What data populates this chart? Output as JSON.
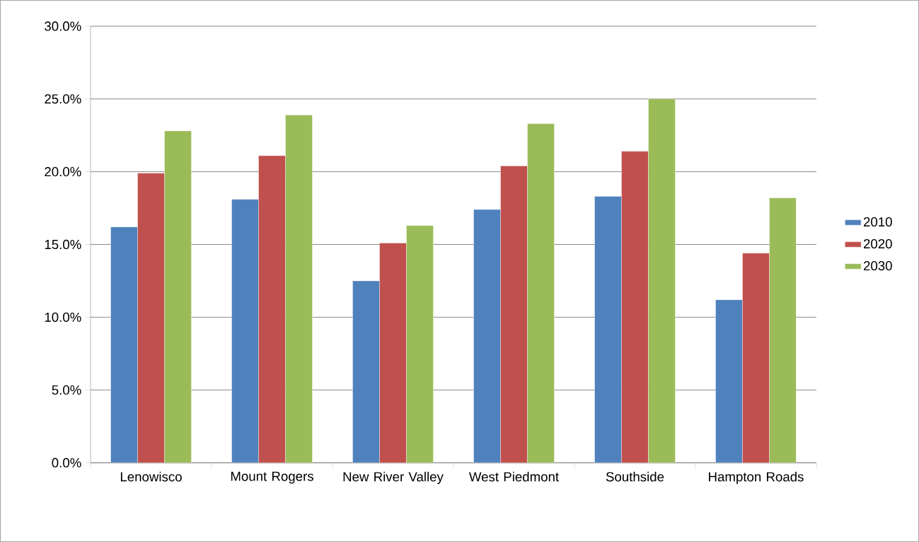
{
  "chart_data": {
    "type": "bar",
    "categories": [
      "Lenowisco",
      "Mount Rogers",
      "New River Valley",
      "West Piedmont",
      "Southside",
      "Hampton Roads"
    ],
    "series": [
      {
        "name": "2010",
        "color": "#4f81bd",
        "values": [
          16.2,
          18.1,
          12.5,
          17.4,
          18.3,
          11.2
        ]
      },
      {
        "name": "2020",
        "color": "#c0504d",
        "values": [
          19.9,
          21.1,
          15.1,
          20.4,
          21.4,
          14.4
        ]
      },
      {
        "name": "2030",
        "color": "#9bbb59",
        "values": [
          22.8,
          23.9,
          16.3,
          23.3,
          25.0,
          18.2
        ]
      }
    ],
    "ylim": [
      0,
      30
    ],
    "yticks": [
      {
        "value": 0,
        "label": "0.0%"
      },
      {
        "value": 5,
        "label": "5.0%"
      },
      {
        "value": 10,
        "label": "10.0%"
      },
      {
        "value": 15,
        "label": "15.0%"
      },
      {
        "value": 20,
        "label": "20.0%"
      },
      {
        "value": 25,
        "label": "25.0%"
      },
      {
        "value": 30,
        "label": "30.0%"
      }
    ],
    "grid": "y",
    "legend": "right"
  }
}
